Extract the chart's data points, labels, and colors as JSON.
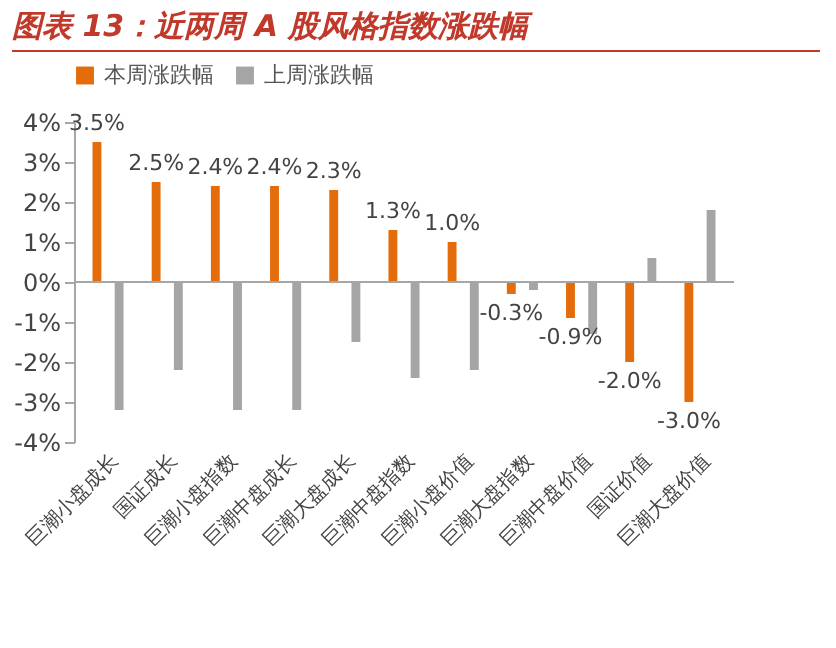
{
  "chart_data": {
    "type": "bar",
    "title": "图表 13：近两周 A 股风格指数涨跌幅",
    "categories": [
      "巨潮小盘成长",
      "国证成长",
      "巨潮小盘指数",
      "巨潮中盘成长",
      "巨潮大盘成长",
      "巨潮中盘指数",
      "巨潮小盘价值",
      "巨潮大盘指数",
      "巨潮中盘价值",
      "国证价值",
      "巨潮大盘价值"
    ],
    "series": [
      {
        "name": "本周涨跌幅",
        "color": "#e46c0a",
        "values": [
          3.5,
          2.5,
          2.4,
          2.4,
          2.3,
          1.3,
          1.0,
          -0.3,
          -0.9,
          -2.0,
          -3.0
        ],
        "value_labels": [
          "3.5%",
          "2.5%",
          "2.4%",
          "2.4%",
          "2.3%",
          "1.3%",
          "1.0%",
          "-0.3%",
          "-0.9%",
          "-2.0%",
          "-3.0%"
        ]
      },
      {
        "name": "上周涨跌幅",
        "color": "#a5a5a5",
        "values": [
          -3.2,
          -2.2,
          -3.2,
          -3.2,
          -1.5,
          -2.4,
          -2.2,
          -0.2,
          -1.3,
          0.6,
          1.8
        ]
      }
    ],
    "ylim": [
      -4,
      4
    ],
    "yticks": [
      {
        "value": -4,
        "label": "-4%"
      },
      {
        "value": -3,
        "label": "-3%"
      },
      {
        "value": -2,
        "label": "-2%"
      },
      {
        "value": -1,
        "label": "-1%"
      },
      {
        "value": 0,
        "label": "0%"
      },
      {
        "value": 1,
        "label": "1%"
      },
      {
        "value": 2,
        "label": "2%"
      },
      {
        "value": 3,
        "label": "3%"
      },
      {
        "value": 4,
        "label": "4%"
      }
    ],
    "ref_lines": [
      {
        "axis": "y",
        "value": 0,
        "color": "#a6a6a6"
      }
    ],
    "grid": false,
    "legend": "top"
  }
}
